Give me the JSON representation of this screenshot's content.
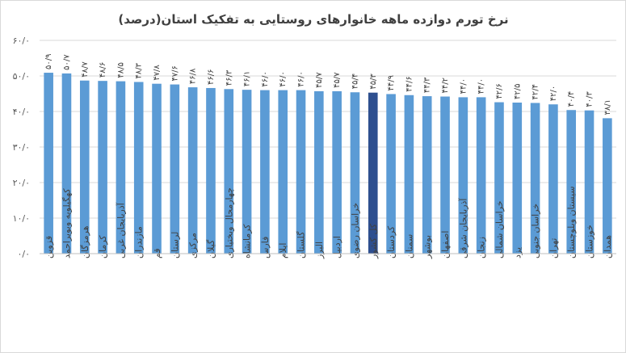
{
  "chart_data": {
    "type": "bar",
    "title": "نرخ تورم دوازده ماهه خانوارهای روستایی به تفکیک استان(درصد)",
    "xlabel": "",
    "ylabel": "",
    "ylim": [
      0,
      60
    ],
    "yticks": [
      "۰/۰",
      "۱۰/۰",
      "۲۰/۰",
      "۳۰/۰",
      "۴۰/۰",
      "۵۰/۰",
      "۶۰/۰"
    ],
    "grid": true,
    "legend": "none",
    "categories": [
      "قزوین",
      "کهگیلویه وبویراحمد",
      "هرمزگان",
      "کرمان",
      "آذربایجان غربی",
      "مازندران",
      "قم",
      "لرستان",
      "مرکزی",
      "گیلان",
      "چهارمحال وبختیاری",
      "کرمانشاه",
      "فارس",
      "ایلام",
      "گلستان",
      "البرز",
      "اردبیل",
      "خراسان رضوی",
      "کل کشور",
      "کردستان",
      "سمنان",
      "بوشهر",
      "اصفهان",
      "آذربایجان شرقی",
      "زنجان",
      "خراسان شمالی",
      "یزد",
      "خراسان جنوبی",
      "تهران",
      "سیستان وبلوچستان",
      "خوزستان",
      "همدان"
    ],
    "values": [
      50.9,
      50.7,
      48.7,
      48.6,
      48.5,
      48.3,
      47.8,
      47.6,
      46.8,
      46.6,
      46.3,
      46.1,
      46.0,
      46.0,
      46.0,
      45.7,
      45.7,
      45.4,
      45.3,
      44.9,
      44.6,
      44.3,
      44.2,
      44.0,
      44.0,
      42.6,
      42.5,
      42.4,
      42.0,
      40.4,
      40.3,
      38.1
    ],
    "value_labels": [
      "۵۰/۹",
      "۵۰/۷",
      "۴۸/۷",
      "۴۸/۶",
      "۴۸/۵",
      "۴۸/۳",
      "۴۷/۸",
      "۴۷/۶",
      "۴۶/۸",
      "۴۶/۶",
      "۴۶/۳",
      "۴۶/۱",
      "۴۶/۰",
      "۴۶/۰",
      "۴۶/۰",
      "۴۵/۷",
      "۴۵/۷",
      "۴۵/۴",
      "۴۵/۳",
      "۴۴/۹",
      "۴۴/۶",
      "۴۴/۳",
      "۴۴/۲",
      "۴۴/۰",
      "۴۴/۰",
      "۴۲/۶",
      "۴۲/۵",
      "۴۲/۴",
      "۴۲/۰",
      "۴۰/۴",
      "۴۰/۳",
      "۳۸/۱"
    ],
    "highlight_category": "کل کشور",
    "colors": {
      "bar": "#5b9bd5",
      "highlight": "#2e4f8f"
    }
  }
}
